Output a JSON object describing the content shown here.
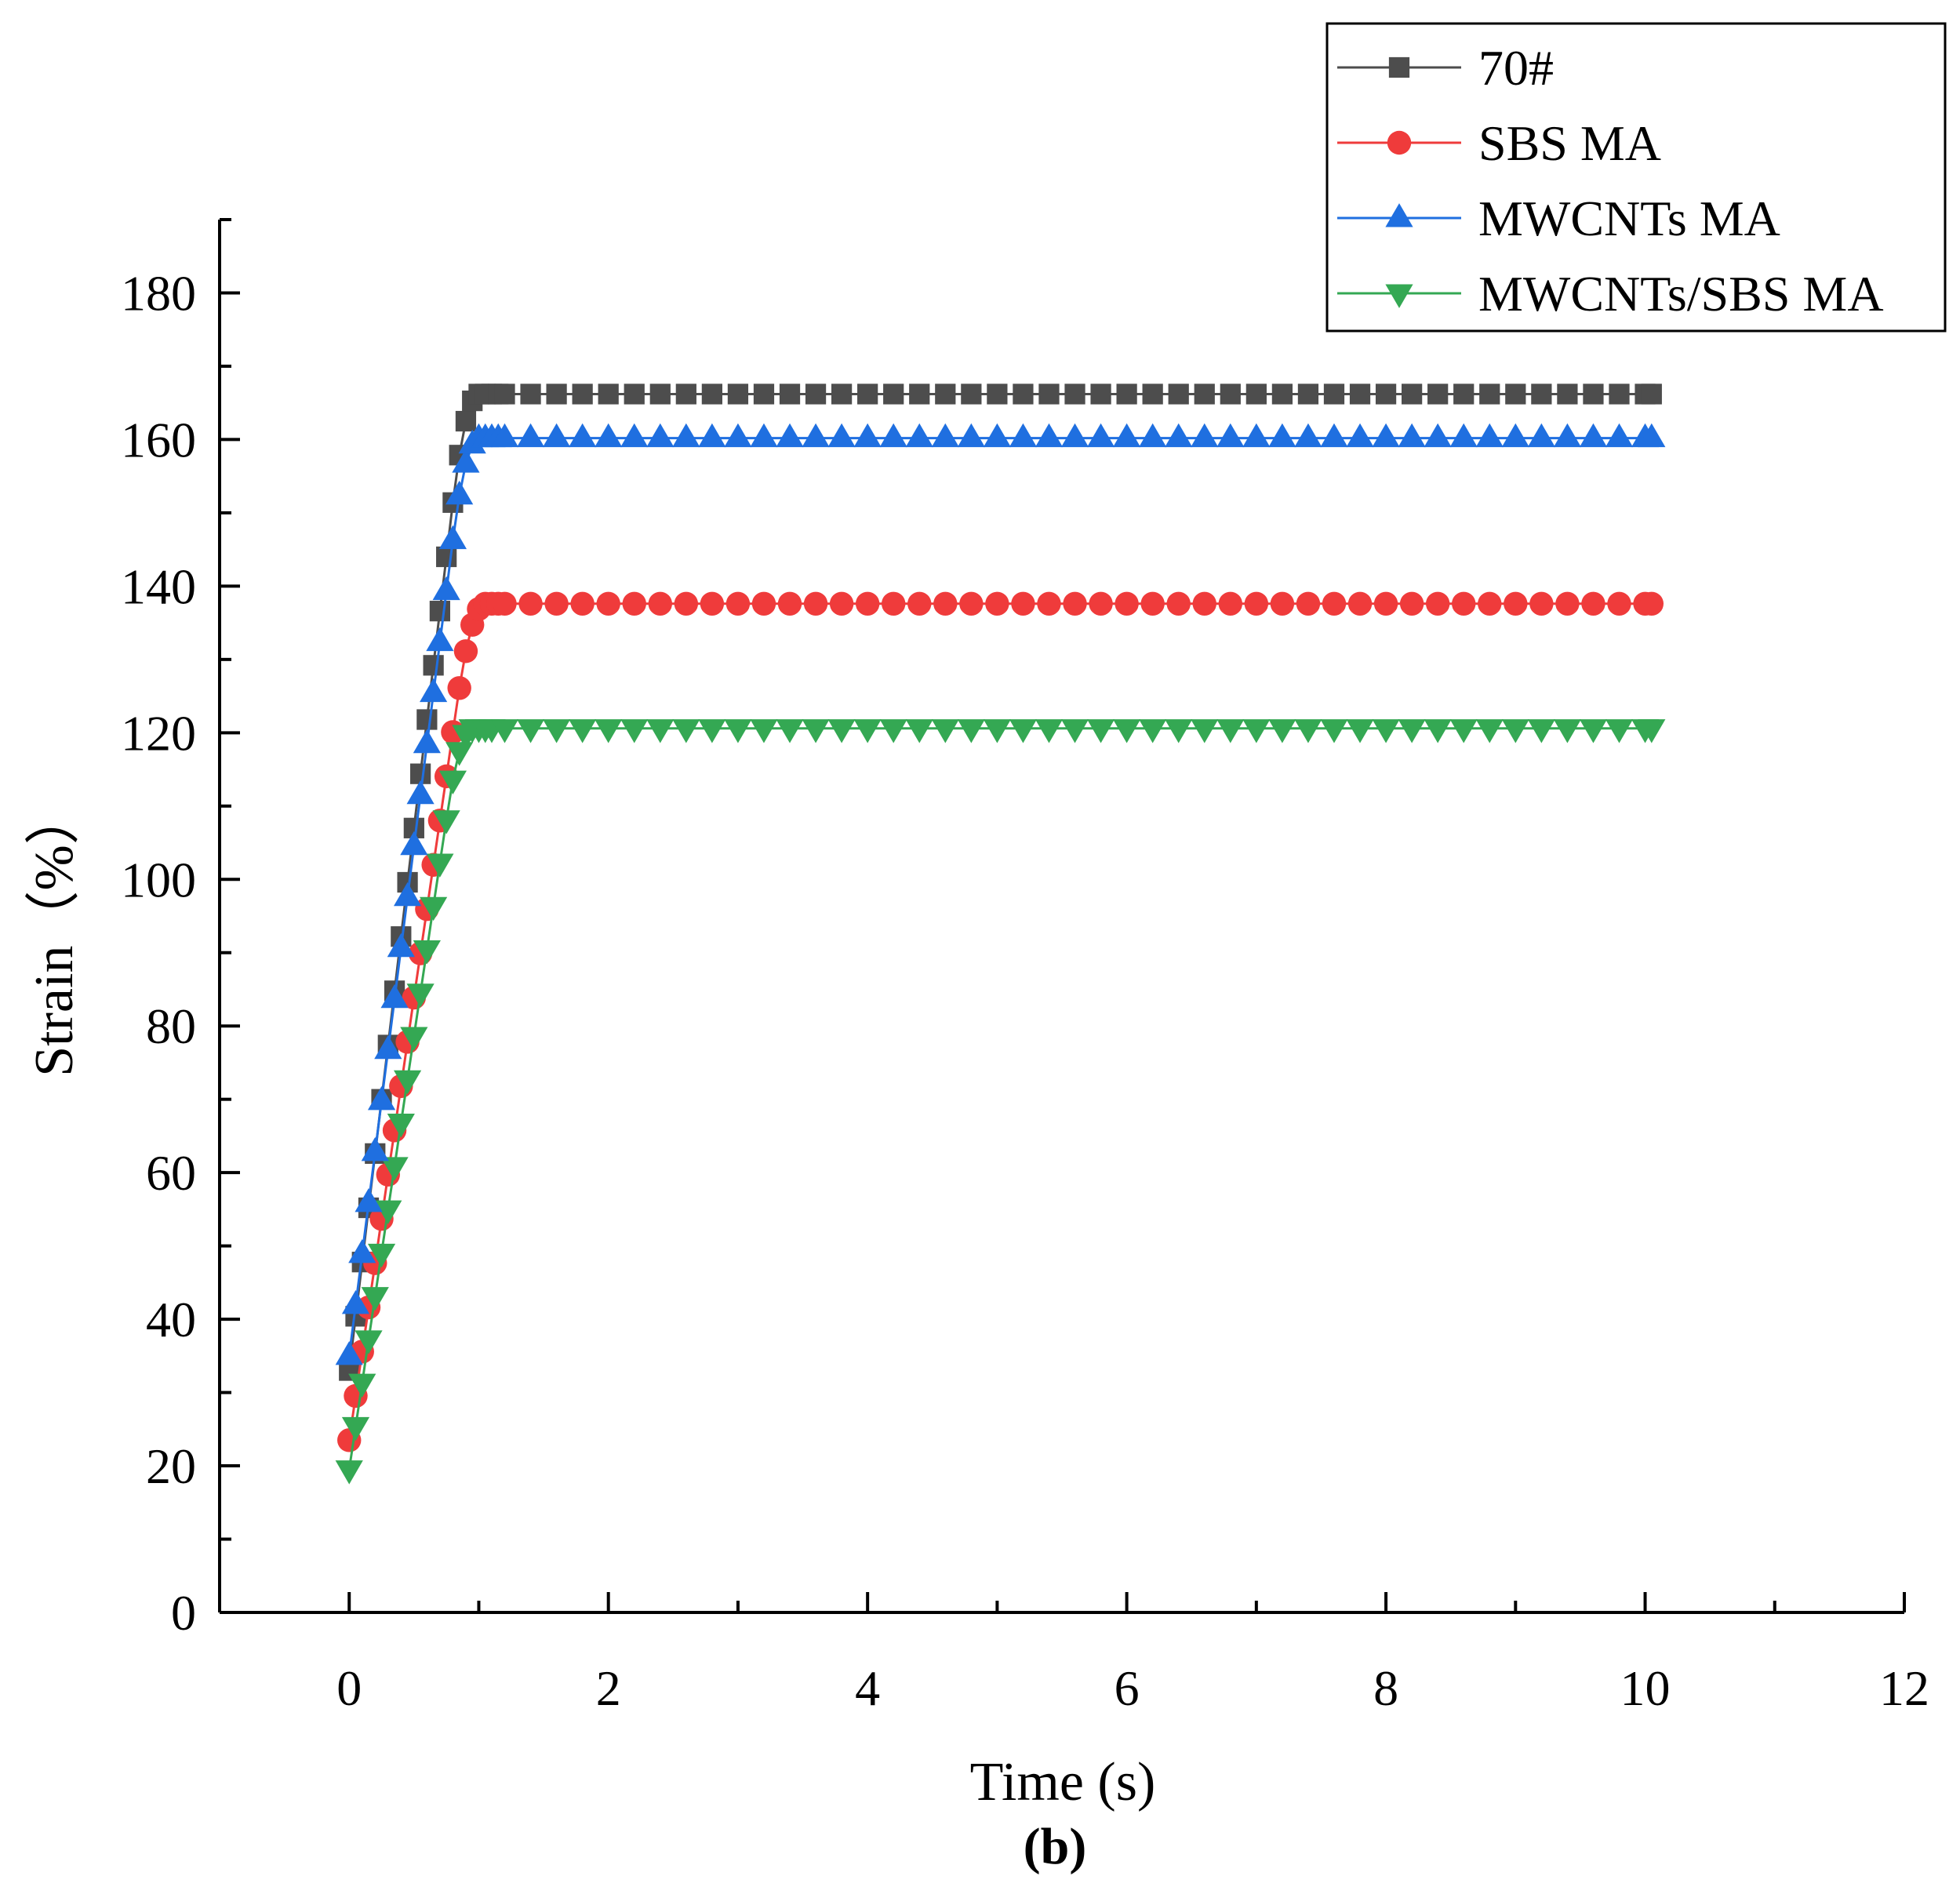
{
  "chart_data": {
    "type": "line",
    "title": "",
    "xlabel": "Time (s)",
    "ylabel": "Strain（%）",
    "panel_label": "(b)",
    "xlim": [
      -1,
      12
    ],
    "ylim": [
      0,
      190
    ],
    "xticks": [
      0,
      2,
      4,
      6,
      8,
      10,
      12
    ],
    "yticks": [
      0,
      20,
      40,
      60,
      80,
      100,
      120,
      140,
      160,
      180
    ],
    "xtick_labels": [
      "0",
      "2",
      "4",
      "6",
      "8",
      "10",
      "12"
    ],
    "ytick_labels": [
      "0",
      "20",
      "40",
      "60",
      "80",
      "100",
      "120",
      "140",
      "160",
      "180"
    ],
    "legend_position": "top-right",
    "series": [
      {
        "name": "70#",
        "color": "#4d4d4d",
        "marker": "square",
        "start": 33,
        "plateau": 166.2,
        "t_plateau": 1.0
      },
      {
        "name": "SBS MA",
        "color": "#ef3b3b",
        "marker": "circle",
        "start": 23.5,
        "plateau": 137.6,
        "t_plateau": 1.05
      },
      {
        "name": "MWCNTs MA",
        "color": "#1f6fe0",
        "marker": "triangle-up",
        "start": 35,
        "plateau": 160.2,
        "t_plateau": 1.0
      },
      {
        "name": "MWCNTs/SBS MA",
        "color": "#34a853",
        "marker": "triangle-down",
        "start": 19.5,
        "plateau": 120.6,
        "t_plateau": 0.95
      }
    ],
    "time_step": 0.05,
    "plateau_marker_step": 0.2,
    "t_end": 10.05
  }
}
